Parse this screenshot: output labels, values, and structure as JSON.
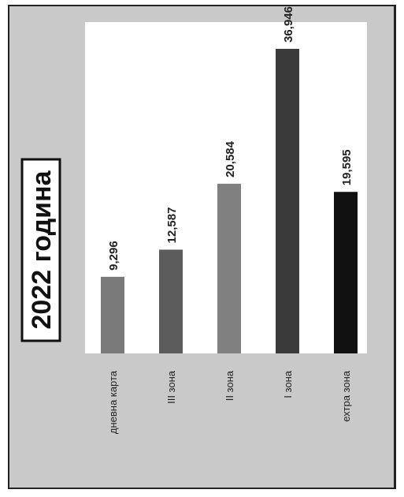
{
  "chart_data": {
    "type": "bar",
    "title": "2022 година",
    "categories": [
      "дневна карта",
      "III зона",
      "II зона",
      "I зона",
      "ехтра зона"
    ],
    "values": [
      9.296,
      12.587,
      20.584,
      36.946,
      19.595
    ],
    "value_labels": [
      "9,296",
      "12,587",
      "20,584",
      "36,946",
      "19,595"
    ],
    "ylim": [
      0,
      40
    ],
    "grid": false,
    "legend": "none",
    "colors": [
      "#7a7a7a",
      "#5c5c5c",
      "#808080",
      "#3a3a3a",
      "#111111"
    ]
  }
}
